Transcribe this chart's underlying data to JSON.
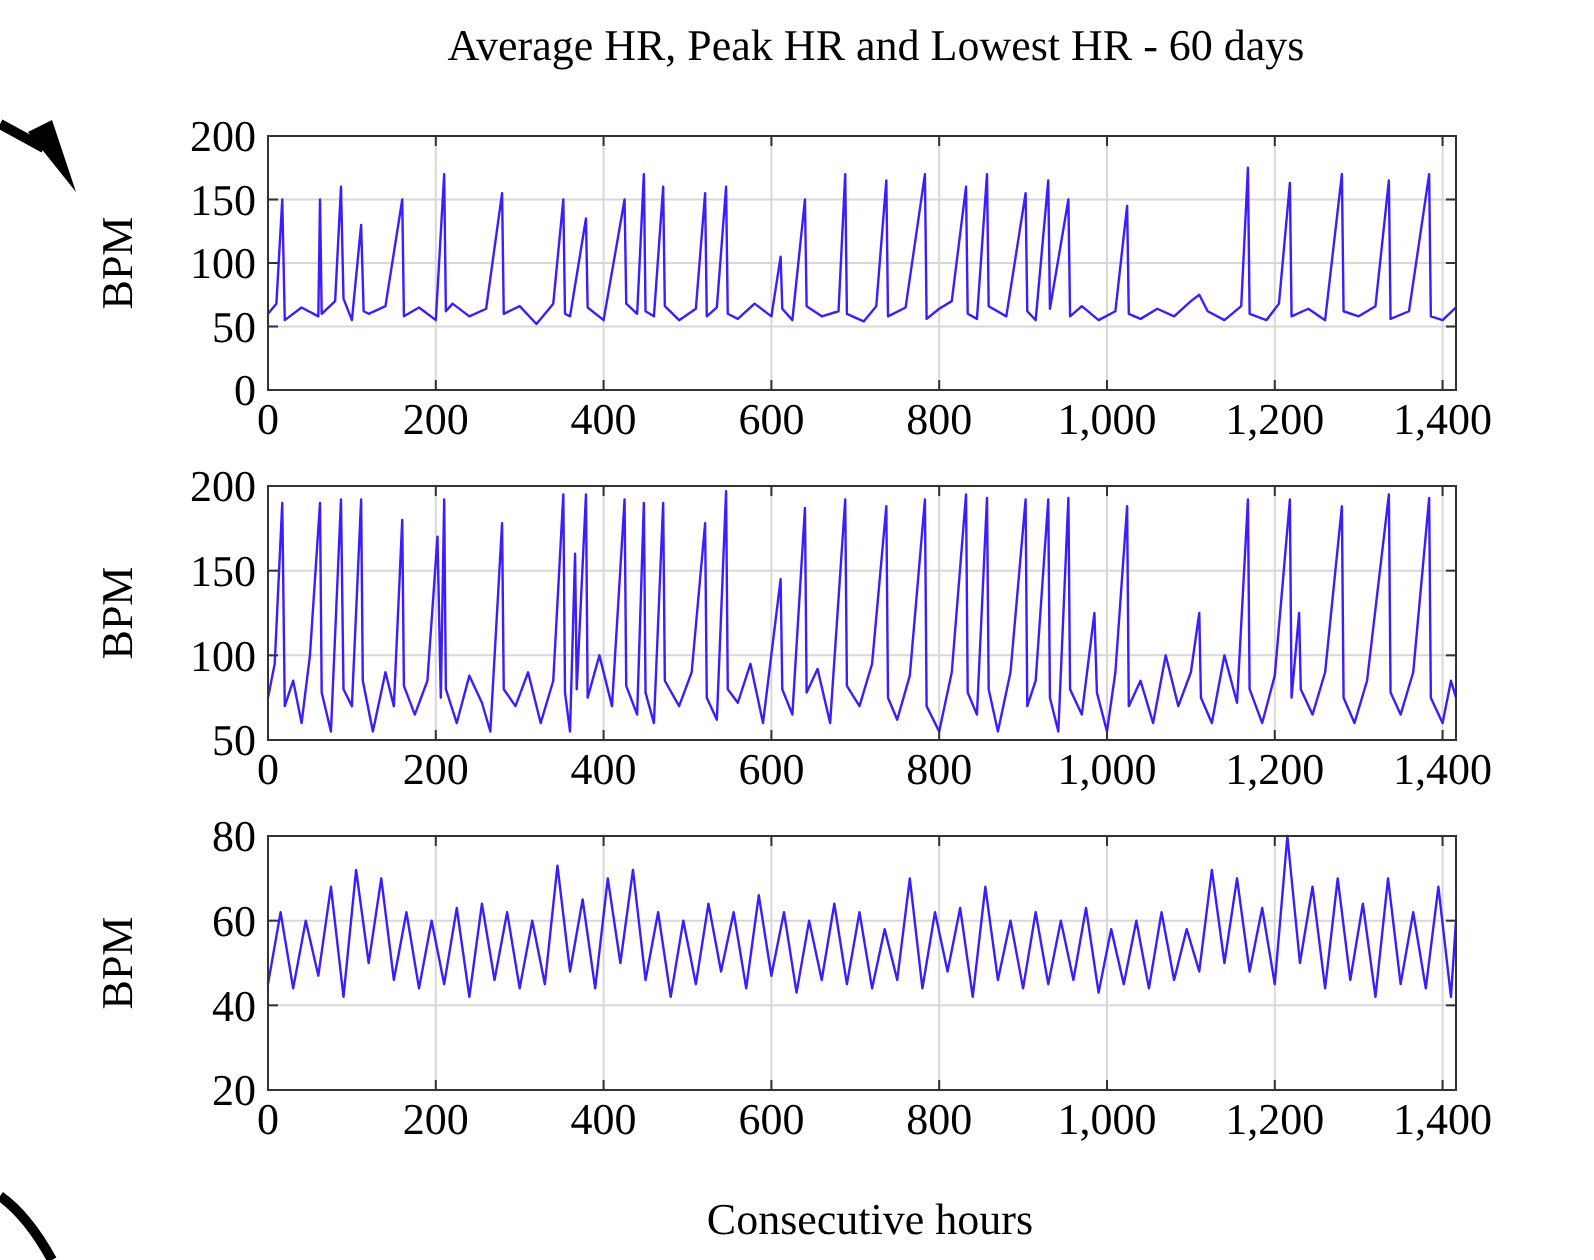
{
  "chart_data": [
    {
      "type": "line",
      "title": "Average HR, Peak HR and Lowest HR - 60 days",
      "ylabel": "BPM",
      "xlim": [
        0,
        1416
      ],
      "ylim": [
        0,
        200
      ],
      "yticks": [
        0,
        50,
        100,
        150,
        200
      ],
      "xticks": [
        0,
        200,
        400,
        600,
        800,
        {
          "value": 1000,
          "label": "1,000"
        },
        {
          "value": 1200,
          "label": "1,200"
        },
        {
          "value": 1400,
          "label": "1,400"
        }
      ],
      "grid": true,
      "marker": "none",
      "line_style": "solid",
      "series": [
        {
          "color": "#3d1cff",
          "x": [
            0,
            10,
            17,
            20,
            40,
            60,
            62,
            64,
            80,
            87,
            90,
            100,
            111,
            114,
            120,
            140,
            160,
            162,
            180,
            200,
            210,
            212,
            220,
            240,
            260,
            279,
            281,
            300,
            320,
            340,
            352,
            354,
            360,
            379,
            381,
            400,
            425,
            427,
            440,
            448,
            450,
            460,
            471,
            473,
            490,
            510,
            521,
            523,
            535,
            546,
            548,
            560,
            580,
            600,
            611,
            613,
            625,
            640,
            642,
            660,
            680,
            688,
            690,
            710,
            725,
            737,
            739,
            760,
            783,
            785,
            800,
            815,
            832,
            834,
            845,
            857,
            859,
            880,
            903,
            905,
            915,
            930,
            932,
            954,
            956,
            970,
            990,
            1010,
            1024,
            1026,
            1040,
            1060,
            1080,
            1100,
            1110,
            1120,
            1140,
            1160,
            1168,
            1170,
            1190,
            1205,
            1218,
            1220,
            1240,
            1260,
            1280,
            1282,
            1300,
            1320,
            1336,
            1338,
            1360,
            1384,
            1386,
            1400,
            1416
          ],
          "values": [
            60,
            68,
            150,
            55,
            65,
            58,
            150,
            60,
            70,
            160,
            72,
            55,
            130,
            62,
            60,
            66,
            150,
            58,
            65,
            55,
            170,
            62,
            68,
            58,
            64,
            155,
            60,
            66,
            52,
            68,
            150,
            60,
            58,
            135,
            65,
            55,
            150,
            68,
            60,
            170,
            62,
            58,
            160,
            66,
            55,
            64,
            155,
            58,
            65,
            160,
            60,
            56,
            68,
            58,
            105,
            64,
            55,
            150,
            66,
            58,
            62,
            170,
            60,
            54,
            66,
            165,
            58,
            65,
            170,
            56,
            64,
            70,
            160,
            60,
            56,
            170,
            66,
            58,
            155,
            62,
            55,
            165,
            64,
            150,
            58,
            66,
            55,
            62,
            145,
            60,
            56,
            64,
            58,
            70,
            75,
            62,
            55,
            66,
            175,
            60,
            55,
            68,
            163,
            58,
            64,
            55,
            170,
            62,
            58,
            66,
            165,
            56,
            62,
            170,
            58,
            55,
            65
          ]
        }
      ]
    },
    {
      "type": "line",
      "ylabel": "BPM",
      "xlim": [
        0,
        1416
      ],
      "ylim": [
        50,
        200
      ],
      "yticks": [
        50,
        100,
        150,
        200
      ],
      "xticks": [
        0,
        200,
        400,
        600,
        800,
        {
          "value": 1000,
          "label": "1,000"
        },
        {
          "value": 1200,
          "label": "1,200"
        },
        {
          "value": 1400,
          "label": "1,400"
        }
      ],
      "grid": true,
      "marker": "none",
      "line_style": "solid",
      "series": [
        {
          "color": "#3d1cff",
          "x": [
            0,
            8,
            17,
            20,
            30,
            40,
            50,
            62,
            64,
            75,
            87,
            90,
            100,
            111,
            113,
            125,
            140,
            150,
            160,
            162,
            175,
            190,
            202,
            206,
            210,
            212,
            225,
            240,
            255,
            265,
            279,
            281,
            295,
            310,
            325,
            340,
            352,
            354,
            360,
            366,
            368,
            379,
            381,
            395,
            410,
            425,
            427,
            440,
            448,
            450,
            460,
            471,
            473,
            490,
            505,
            521,
            523,
            535,
            546,
            548,
            560,
            575,
            590,
            611,
            613,
            625,
            640,
            642,
            655,
            670,
            688,
            690,
            705,
            720,
            737,
            739,
            750,
            765,
            783,
            785,
            800,
            815,
            832,
            834,
            845,
            857,
            859,
            870,
            885,
            903,
            905,
            915,
            930,
            932,
            942,
            954,
            956,
            970,
            985,
            988,
            1000,
            1010,
            1024,
            1026,
            1040,
            1055,
            1070,
            1085,
            1100,
            1110,
            1112,
            1125,
            1140,
            1155,
            1168,
            1170,
            1185,
            1200,
            1218,
            1220,
            1229,
            1231,
            1245,
            1260,
            1280,
            1282,
            1295,
            1310,
            1336,
            1338,
            1350,
            1365,
            1384,
            1386,
            1400,
            1410,
            1416
          ],
          "values": [
            75,
            95,
            190,
            70,
            85,
            60,
            100,
            190,
            78,
            55,
            192,
            80,
            70,
            192,
            85,
            55,
            90,
            70,
            180,
            82,
            65,
            85,
            170,
            75,
            192,
            80,
            60,
            88,
            72,
            55,
            178,
            80,
            70,
            90,
            60,
            85,
            195,
            78,
            55,
            160,
            80,
            195,
            75,
            100,
            70,
            192,
            82,
            65,
            190,
            78,
            60,
            190,
            85,
            70,
            90,
            178,
            75,
            62,
            197,
            80,
            72,
            95,
            60,
            145,
            80,
            65,
            187,
            78,
            92,
            60,
            192,
            82,
            70,
            95,
            188,
            75,
            62,
            88,
            192,
            70,
            55,
            90,
            195,
            78,
            65,
            193,
            80,
            55,
            90,
            192,
            70,
            85,
            192,
            75,
            55,
            193,
            80,
            65,
            125,
            78,
            55,
            90,
            188,
            70,
            85,
            60,
            100,
            70,
            90,
            125,
            75,
            60,
            100,
            72,
            192,
            80,
            60,
            88,
            192,
            75,
            125,
            80,
            65,
            90,
            188,
            75,
            60,
            85,
            195,
            78,
            65,
            90,
            193,
            75,
            60,
            85,
            75
          ]
        }
      ]
    },
    {
      "type": "line",
      "ylabel": "BPM",
      "xlabel": "Consecutive hours",
      "xlim": [
        0,
        1416
      ],
      "ylim": [
        20,
        80
      ],
      "yticks": [
        20,
        40,
        60,
        80
      ],
      "xticks": [
        0,
        200,
        400,
        600,
        800,
        {
          "value": 1000,
          "label": "1,000"
        },
        {
          "value": 1200,
          "label": "1,200"
        },
        {
          "value": 1400,
          "label": "1,400"
        }
      ],
      "grid": true,
      "marker": "none",
      "line_style": "solid",
      "series": [
        {
          "color": "#3d1cff",
          "x": [
            0,
            15,
            30,
            45,
            60,
            75,
            90,
            105,
            120,
            135,
            150,
            165,
            180,
            195,
            210,
            225,
            240,
            255,
            270,
            285,
            300,
            315,
            330,
            345,
            360,
            375,
            390,
            405,
            420,
            435,
            450,
            465,
            480,
            495,
            510,
            525,
            540,
            555,
            570,
            585,
            600,
            615,
            630,
            645,
            660,
            675,
            690,
            705,
            720,
            735,
            750,
            765,
            780,
            795,
            810,
            825,
            840,
            855,
            870,
            885,
            900,
            915,
            930,
            945,
            960,
            975,
            990,
            1005,
            1020,
            1035,
            1050,
            1065,
            1080,
            1095,
            1110,
            1125,
            1140,
            1155,
            1170,
            1185,
            1200,
            1215,
            1230,
            1245,
            1260,
            1275,
            1290,
            1305,
            1320,
            1335,
            1350,
            1365,
            1380,
            1395,
            1410,
            1416
          ],
          "values": [
            45,
            62,
            44,
            60,
            47,
            68,
            42,
            72,
            50,
            70,
            46,
            62,
            44,
            60,
            45,
            63,
            42,
            64,
            46,
            62,
            44,
            60,
            45,
            73,
            48,
            65,
            44,
            70,
            50,
            72,
            46,
            62,
            42,
            60,
            45,
            64,
            48,
            62,
            44,
            66,
            47,
            62,
            43,
            60,
            46,
            64,
            45,
            62,
            44,
            58,
            46,
            70,
            44,
            62,
            48,
            63,
            42,
            68,
            46,
            60,
            44,
            62,
            45,
            60,
            46,
            63,
            43,
            58,
            45,
            60,
            44,
            62,
            46,
            58,
            48,
            72,
            50,
            70,
            48,
            63,
            45,
            80,
            50,
            68,
            44,
            70,
            46,
            64,
            42,
            70,
            45,
            62,
            44,
            68,
            42,
            60
          ]
        }
      ]
    }
  ]
}
